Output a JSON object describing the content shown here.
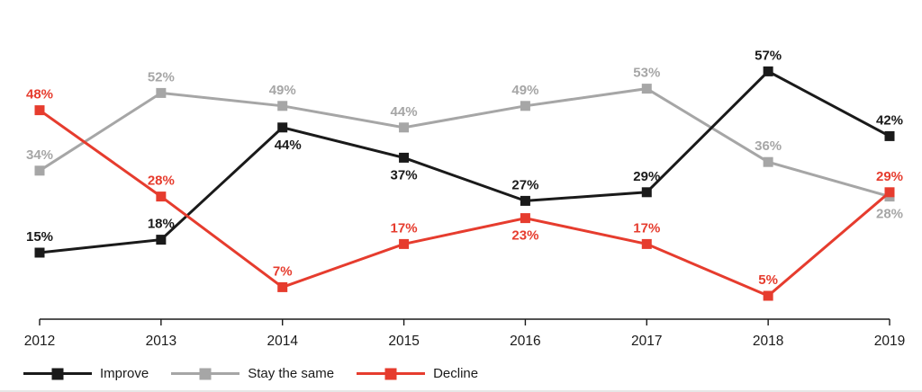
{
  "figure": {
    "background_color": "#ffffff",
    "axis_line_color": "#1a1a1a",
    "year_label_color": "#1a1a1a"
  },
  "chart_data": {
    "type": "line",
    "title": "",
    "xlabel": "",
    "ylabel": "",
    "categories": [
      "2012",
      "2013",
      "2014",
      "2015",
      "2016",
      "2017",
      "2018",
      "2019"
    ],
    "series": [
      {
        "name": "Improve",
        "color": "#1a1a1a",
        "values": [
          15,
          18,
          44,
          37,
          27,
          29,
          57,
          42
        ],
        "label_positions": [
          "above",
          "above",
          "below",
          "below",
          "above",
          "above",
          "above",
          "above"
        ],
        "label_dx": [
          0,
          0,
          6,
          0,
          0,
          0,
          0,
          0
        ]
      },
      {
        "name": "Stay the same",
        "color": "#a6a6a6",
        "values": [
          34,
          52,
          49,
          44,
          49,
          53,
          36,
          28
        ],
        "label_positions": [
          "above",
          "above",
          "above",
          "above",
          "above",
          "above",
          "above",
          "below"
        ],
        "label_dx": [
          0,
          0,
          0,
          0,
          0,
          0,
          0,
          0
        ]
      },
      {
        "name": "Decline",
        "color": "#e63c2e",
        "values": [
          48,
          28,
          7,
          17,
          23,
          17,
          5,
          29
        ],
        "label_positions": [
          "above",
          "above",
          "above",
          "above",
          "below",
          "above",
          "above",
          "above"
        ],
        "label_dx": [
          0,
          0,
          0,
          0,
          0,
          0,
          0,
          0
        ]
      }
    ],
    "value_label_format": "{v}%",
    "ylim": [
      0,
      62
    ],
    "grid": false,
    "marker": "square",
    "legend_position": "bottom-left",
    "draw_order": [
      1,
      0,
      2
    ]
  },
  "legend": {
    "items": [
      {
        "label": "Improve",
        "color": "#1a1a1a"
      },
      {
        "label": "Stay the same",
        "color": "#a6a6a6"
      },
      {
        "label": "Decline",
        "color": "#e63c2e"
      }
    ]
  }
}
